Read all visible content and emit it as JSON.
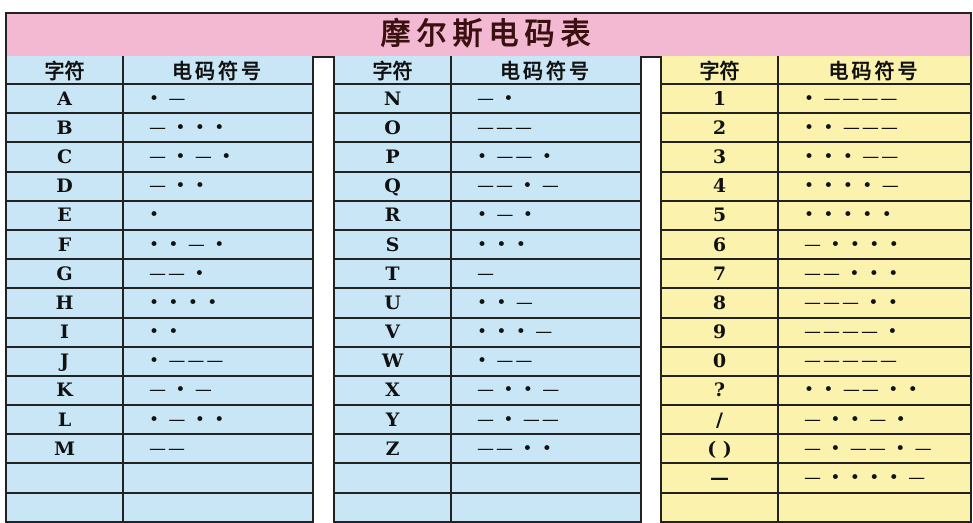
{
  "title": "摩尔斯电码表",
  "colors": {
    "title_bg": "#f4b9d2",
    "blue_bg": "#c8e6f5",
    "yellow_bg": "#fbf3ad"
  },
  "header": {
    "char": "字符",
    "code": "电码符号"
  },
  "tables": [
    {
      "rows": [
        {
          "char": "A",
          "code": "• —"
        },
        {
          "char": "B",
          "code": "— • • •"
        },
        {
          "char": "C",
          "code": "— • — •"
        },
        {
          "char": "D",
          "code": "— • •"
        },
        {
          "char": "E",
          "code": "•"
        },
        {
          "char": "F",
          "code": "• • — •"
        },
        {
          "char": "G",
          "code": "—— •"
        },
        {
          "char": "H",
          "code": "• • • •"
        },
        {
          "char": "I",
          "code": "• •"
        },
        {
          "char": "J",
          "code": "• ———"
        },
        {
          "char": "K",
          "code": "— • —"
        },
        {
          "char": "L",
          "code": "• — • •"
        },
        {
          "char": "M",
          "code": "——"
        },
        {
          "char": "",
          "code": ""
        },
        {
          "char": "",
          "code": ""
        }
      ]
    },
    {
      "rows": [
        {
          "char": "N",
          "code": "— •"
        },
        {
          "char": "O",
          "code": "———"
        },
        {
          "char": "P",
          "code": "• —— •"
        },
        {
          "char": "Q",
          "code": "—— • —"
        },
        {
          "char": "R",
          "code": "• — •"
        },
        {
          "char": "S",
          "code": "• • •"
        },
        {
          "char": "T",
          "code": "—"
        },
        {
          "char": "U",
          "code": "• • —"
        },
        {
          "char": "V",
          "code": "• • • —"
        },
        {
          "char": "W",
          "code": "• ——"
        },
        {
          "char": "X",
          "code": "— • • —"
        },
        {
          "char": "Y",
          "code": "— • ——"
        },
        {
          "char": "Z",
          "code": "—— • •"
        },
        {
          "char": "",
          "code": ""
        },
        {
          "char": "",
          "code": ""
        }
      ]
    },
    {
      "rows": [
        {
          "char": "1",
          "code": "• ————"
        },
        {
          "char": "2",
          "code": "• • ———"
        },
        {
          "char": "3",
          "code": "• • • ——"
        },
        {
          "char": "4",
          "code": "• • • • —"
        },
        {
          "char": "5",
          "code": "• • • • •"
        },
        {
          "char": "6",
          "code": "— • • • •"
        },
        {
          "char": "7",
          "code": "—— • • •"
        },
        {
          "char": "8",
          "code": "——— • •"
        },
        {
          "char": "9",
          "code": "———— •"
        },
        {
          "char": "0",
          "code": "—————"
        },
        {
          "char": "?",
          "code": "• • —— • •"
        },
        {
          "char": "/",
          "code": "— • • — •"
        },
        {
          "char": "( )",
          "code": "— • —— • —"
        },
        {
          "char": "—",
          "code": "— • • • • —"
        },
        {
          "char": "",
          "code": ""
        }
      ]
    }
  ]
}
